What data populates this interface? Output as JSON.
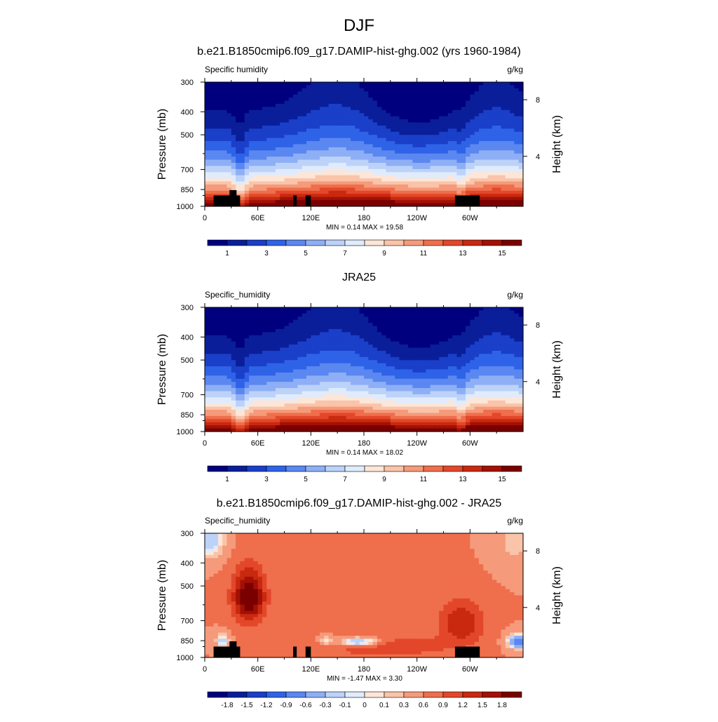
{
  "figure_title": "DJF",
  "chart_data": [
    {
      "type": "heatmap",
      "title": "b.e21.B1850cmip6.f09_g17.DAMIP-hist-ghg.002 (yrs 1960-1984)",
      "left_label": "Specific humidity",
      "units": "g/kg",
      "ylabel": "Pressure (mb)",
      "ylabel_right": "Height (km)",
      "x_ticks": [
        "0",
        "60E",
        "120E",
        "180",
        "120W",
        "60W"
      ],
      "y_ticks": [
        "300",
        "400",
        "500",
        "700",
        "850",
        "1000"
      ],
      "right_ticks": [
        "8",
        "4"
      ],
      "stats": "MIN =   0.14  MAX =  19.58",
      "colorbar_labels": [
        "1",
        "3",
        "5",
        "7",
        "9",
        "11",
        "13",
        "15"
      ],
      "xlim": [
        0,
        360
      ],
      "ylim": [
        1000,
        300
      ],
      "mask": true
    },
    {
      "type": "heatmap",
      "title": "JRA25",
      "left_label": "Specific_humidity",
      "units": "g/kg",
      "ylabel": "Pressure (mb)",
      "ylabel_right": "Height (km)",
      "x_ticks": [
        "0",
        "60E",
        "120E",
        "180",
        "120W",
        "60W"
      ],
      "y_ticks": [
        "300",
        "400",
        "500",
        "700",
        "850",
        "1000"
      ],
      "right_ticks": [
        "8",
        "4"
      ],
      "stats": "MIN =   0.14  MAX =  18.02",
      "colorbar_labels": [
        "1",
        "3",
        "5",
        "7",
        "9",
        "11",
        "13",
        "15"
      ],
      "xlim": [
        0,
        360
      ],
      "ylim": [
        1000,
        300
      ],
      "mask": false
    },
    {
      "type": "heatmap",
      "title": "b.e21.B1850cmip6.f09_g17.DAMIP-hist-ghg.002 - JRA25",
      "left_label": "Specific_humidity",
      "units": "g/kg",
      "ylabel": "Pressure (mb)",
      "ylabel_right": "Height (km)",
      "x_ticks": [
        "0",
        "60E",
        "120E",
        "180",
        "120W",
        "60W"
      ],
      "y_ticks": [
        "300",
        "400",
        "500",
        "700",
        "850",
        "1000"
      ],
      "right_ticks": [
        "8",
        "4"
      ],
      "stats": "MIN =  -1.47  MAX =   3.30",
      "colorbar_labels": [
        "-1.8",
        "-1.5",
        "-1.2",
        "-0.9",
        "-0.6",
        "-0.3",
        "-0.1",
        "0",
        "0.1",
        "0.3",
        "0.6",
        "0.9",
        "1.2",
        "1.5",
        "1.8"
      ],
      "xlim": [
        0,
        360
      ],
      "ylim": [
        1000,
        300
      ],
      "mask": true
    }
  ],
  "colors": {
    "seq": [
      "#00007f",
      "#0a1e9a",
      "#1a3fc8",
      "#2e63e8",
      "#5a87f0",
      "#8eaff5",
      "#bcd2f8",
      "#e0ebfc",
      "#fde6d8",
      "#f9c4a9",
      "#f59a7a",
      "#ef6e4c",
      "#e3472a",
      "#c8290f",
      "#a31005",
      "#7a0000"
    ],
    "div": [
      "#00007f",
      "#0a1e9a",
      "#1a3fc8",
      "#2e63e8",
      "#5a87f0",
      "#8eaff5",
      "#bcd2f8",
      "#e0ebfc",
      "#fde6d8",
      "#f9c4a9",
      "#f59a7a",
      "#ef6e4c",
      "#e3472a",
      "#c8290f",
      "#a31005",
      "#7a0000"
    ],
    "mask": "#000000"
  }
}
